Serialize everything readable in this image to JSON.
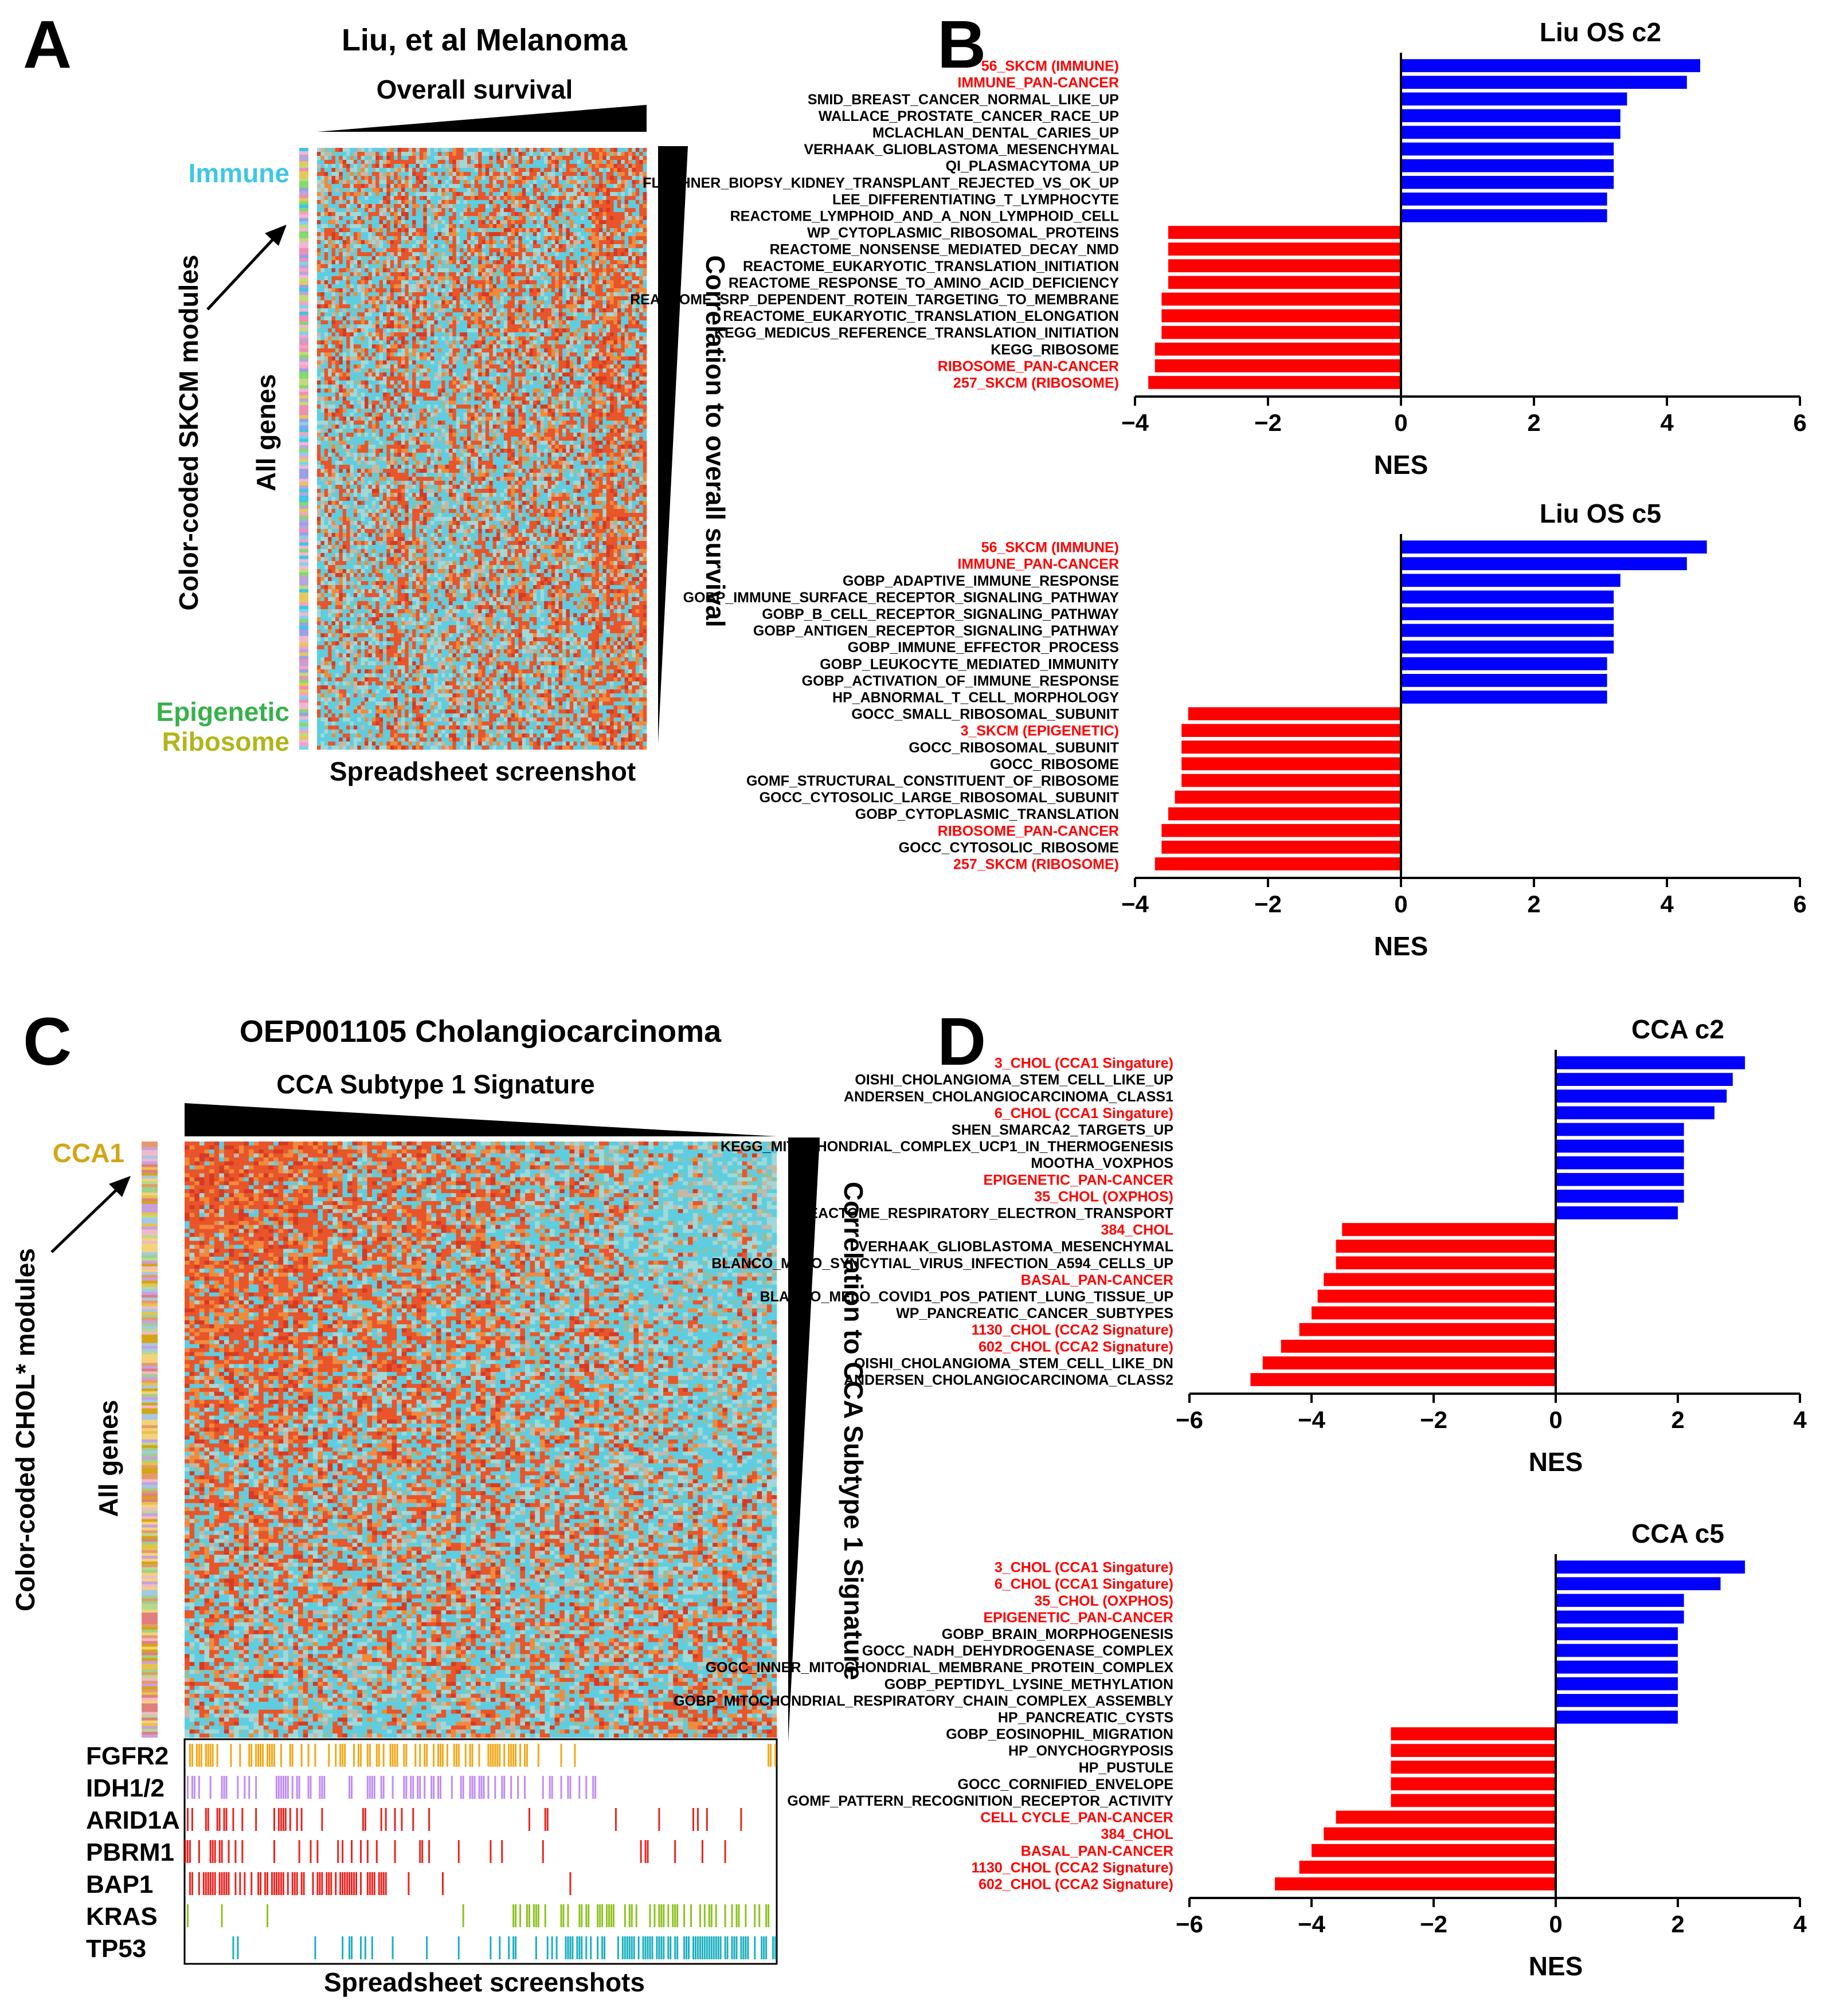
{
  "panels": {
    "A": {
      "letter": "A",
      "title": "Liu, et al Melanoma",
      "top_axis": "Overall survival",
      "side_axis": "Correlation to overall survival",
      "left_label": "Color-coded SKCM modules",
      "all_genes": "All genes",
      "caption": "Spreadsheet screenshot",
      "modules": [
        {
          "name": "Immune",
          "color": "#3ec7e6"
        },
        {
          "name": "Epigenetic",
          "color": "#37b14a"
        },
        {
          "name": "Ribosome",
          "color": "#b2b51c"
        }
      ]
    },
    "C": {
      "letter": "C",
      "title": "OEP001105 Cholangiocarcinoma",
      "top_axis": "CCA Subtype 1 Signature",
      "side_axis": "Correlation to CCA Subtype 1 Signature",
      "left_label": "Color-coded CHOL* modules",
      "all_genes": "All genes",
      "caption": "Spreadsheet screenshots",
      "modules": [
        {
          "name": "CCA1",
          "color": "#d4a516"
        }
      ],
      "mutations": [
        {
          "gene": "FGFR2",
          "color": "#f0a818"
        },
        {
          "gene": "IDH1/2",
          "color": "#bf8cf2"
        },
        {
          "gene": "ARID1A",
          "color": "#e52521"
        },
        {
          "gene": "PBRM1",
          "color": "#e52521"
        },
        {
          "gene": "BAP1",
          "color": "#e52521"
        },
        {
          "gene": "KRAS",
          "color": "#8dc21f"
        },
        {
          "gene": "TP53",
          "color": "#1ab0c0"
        }
      ]
    },
    "B": {
      "letter": "B"
    },
    "D": {
      "letter": "D"
    }
  },
  "chart_data": [
    {
      "type": "bar",
      "orientation": "horizontal",
      "title": "Liu OS c2",
      "xlabel": "NES",
      "xlim": [
        -4,
        6
      ],
      "xticks": [
        -4,
        -2,
        0,
        2,
        4,
        6
      ],
      "positive_color": "#0000ff",
      "negative_color": "#ff0000",
      "highlight_color": "#ff0000",
      "categories": [
        "56_SKCM (IMMUNE)",
        "IMMUNE_PAN-CANCER",
        "SMID_BREAST_CANCER_NORMAL_LIKE_UP",
        "WALLACE_PROSTATE_CANCER_RACE_UP",
        "MCLACHLAN_DENTAL_CARIES_UP",
        "VERHAAK_GLIOBLASTOMA_MESENCHYMAL",
        "QI_PLASMACYTOMA_UP",
        "FLECHNER_BIOPSY_KIDNEY_TRANSPLANT_REJECTED_VS_OK_UP",
        "LEE_DIFFERENTIATING_T_LYMPHOCYTE",
        "REACTOME_LYMPHOID_AND_A_NON_LYMPHOID_CELL",
        "WP_CYTOPLASMIC_RIBOSOMAL_PROTEINS",
        "REACTOME_NONSENSE_MEDIATED_DECAY_NMD",
        "REACTOME_EUKARYOTIC_TRANSLATION_INITIATION",
        "REACTOME_RESPONSE_TO_AMINO_ACID_DEFICIENCY",
        "REACTOME_SRP_DEPENDENT_ROTEIN_TARGETING_TO_MEMBRANE",
        "REACTOME_EUKARYOTIC_TRANSLATION_ELONGATION",
        "KEGG_MEDICUS_REFERENCE_TRANSLATION_INITIATION",
        "KEGG_RIBOSOME",
        "RIBOSOME_PAN-CANCER",
        "257_SKCM (RIBOSOME)"
      ],
      "values": [
        4.5,
        4.3,
        3.4,
        3.3,
        3.3,
        3.2,
        3.2,
        3.2,
        3.1,
        3.1,
        -3.5,
        -3.5,
        -3.5,
        -3.5,
        -3.6,
        -3.6,
        -3.6,
        -3.7,
        -3.7,
        -3.8
      ],
      "highlighted": [
        true,
        true,
        false,
        false,
        false,
        false,
        false,
        false,
        false,
        false,
        false,
        false,
        false,
        false,
        false,
        false,
        false,
        false,
        true,
        true
      ]
    },
    {
      "type": "bar",
      "orientation": "horizontal",
      "title": "Liu OS c5",
      "xlabel": "NES",
      "xlim": [
        -4,
        6
      ],
      "xticks": [
        -4,
        -2,
        0,
        2,
        4,
        6
      ],
      "positive_color": "#0000ff",
      "negative_color": "#ff0000",
      "highlight_color": "#ff0000",
      "categories": [
        "56_SKCM (IMMUNE)",
        "IMMUNE_PAN-CANCER",
        "GOBP_ADAPTIVE_IMMUNE_RESPONSE",
        "GOBP_IMMUNE_SURFACE_RECEPTOR_SIGNALING_PATHWAY",
        "GOBP_B_CELL_RECEPTOR_SIGNALING_PATHWAY",
        "GOBP_ANTIGEN_RECEPTOR_SIGNALING_PATHWAY",
        "GOBP_IMMUNE_EFFECTOR_PROCESS",
        "GOBP_LEUKOCYTE_MEDIATED_IMMUNITY",
        "GOBP_ACTIVATION_OF_IMMUNE_RESPONSE",
        "HP_ABNORMAL_T_CELL_MORPHOLOGY",
        "GOCC_SMALL_RIBOSOMAL_SUBUNIT",
        "3_SKCM (EPIGENETIC)",
        "GOCC_RIBOSOMAL_SUBUNIT",
        "GOCC_RIBOSOME",
        "GOMF_STRUCTURAL_CONSTITUENT_OF_RIBOSOME",
        "GOCC_CYTOSOLIC_LARGE_RIBOSOMAL_SUBUNIT",
        "GOBP_CYTOPLASMIC_TRANSLATION",
        "RIBOSOME_PAN-CANCER",
        "GOCC_CYTOSOLIC_RIBOSOME",
        "257_SKCM (RIBOSOME)"
      ],
      "values": [
        4.6,
        4.3,
        3.3,
        3.2,
        3.2,
        3.2,
        3.2,
        3.1,
        3.1,
        3.1,
        -3.2,
        -3.3,
        -3.3,
        -3.3,
        -3.3,
        -3.4,
        -3.5,
        -3.6,
        -3.6,
        -3.7
      ],
      "highlighted": [
        true,
        true,
        false,
        false,
        false,
        false,
        false,
        false,
        false,
        false,
        false,
        true,
        false,
        false,
        false,
        false,
        false,
        true,
        false,
        true
      ]
    },
    {
      "type": "bar",
      "orientation": "horizontal",
      "title": "CCA c2",
      "xlabel": "NES",
      "xlim": [
        -6,
        4
      ],
      "xticks": [
        -6,
        -4,
        -2,
        0,
        2,
        4
      ],
      "positive_color": "#0000ff",
      "negative_color": "#ff0000",
      "highlight_color": "#ff0000",
      "categories": [
        "3_CHOL (CCA1 Singature)",
        "OISHI_CHOLANGIOMA_STEM_CELL_LIKE_UP",
        "ANDERSEN_CHOLANGIOCARCINOMA_CLASS1",
        "6_CHOL (CCA1 Singature)",
        "SHEN_SMARCA2_TARGETS_UP",
        "KEGG_MITOCHONDRIAL_COMPLEX_UCP1_IN_THERMOGENESIS",
        "MOOTHA_VOXPHOS",
        "EPIGENETIC_PAN-CANCER",
        "35_CHOL (OXPHOS)",
        "REACTOME_RESPIRATORY_ELECTRON_TRANSPORT",
        "384_CHOL",
        "VERHAAK_GLIOBLASTOMA_MESENCHYMAL",
        "BLANCO_MELO_SYNCYTIAL_VIRUS_INFECTION_A594_CELLS_UP",
        "BASAL_PAN-CANCER",
        "BLANCO_MELO_COVID1_POS_PATIENT_LUNG_TISSUE_UP",
        "WP_PANCREATIC_CANCER_SUBTYPES",
        "1130_CHOL (CCA2 Signature)",
        "602_CHOL (CCA2 Signature)",
        "OISHI_CHOLANGIOMA_STEM_CELL_LIKE_DN",
        "ANDERSEN_CHOLANGIOCARCINOMA_CLASS2"
      ],
      "values": [
        3.1,
        2.9,
        2.8,
        2.6,
        2.1,
        2.1,
        2.1,
        2.1,
        2.1,
        2.0,
        -3.5,
        -3.6,
        -3.6,
        -3.8,
        -3.9,
        -4.0,
        -4.2,
        -4.5,
        -4.8,
        -5.0
      ],
      "highlighted": [
        true,
        false,
        false,
        true,
        false,
        false,
        false,
        true,
        true,
        false,
        true,
        false,
        false,
        true,
        false,
        false,
        true,
        true,
        false,
        false
      ]
    },
    {
      "type": "bar",
      "orientation": "horizontal",
      "title": "CCA c5",
      "xlabel": "NES",
      "xlim": [
        -6,
        4
      ],
      "xticks": [
        -6,
        -4,
        -2,
        0,
        2,
        4
      ],
      "positive_color": "#0000ff",
      "negative_color": "#ff0000",
      "highlight_color": "#ff0000",
      "categories": [
        "3_CHOL (CCA1 Singature)",
        "6_CHOL (CCA1 Singature)",
        "35_CHOL (OXPHOS)",
        "EPIGENETIC_PAN-CANCER",
        "GOBP_BRAIN_MORPHOGENESIS",
        "GOCC_NADH_DEHYDROGENASE_COMPLEX",
        "GOCC_INNER_MITOCHONDRIAL_MEMBRANE_PROTEIN_COMPLEX",
        "GOBP_PEPTIDYL_LYSINE_METHYLATION",
        "GOBP_MITOCHONDRIAL_RESPIRATORY_CHAIN_COMPLEX_ASSEMBLY",
        "HP_PANCREATIC_CYSTS",
        "GOBP_EOSINOPHIL_MIGRATION",
        "HP_ONYCHOGRYPOSIS",
        "HP_PUSTULE",
        "GOCC_CORNIFIED_ENVELOPE",
        "GOMF_PATTERN_RECOGNITION_RECEPTOR_ACTIVITY",
        "CELL CYCLE_PAN-CANCER",
        "384_CHOL",
        "BASAL_PAN-CANCER",
        "1130_CHOL (CCA2 Signature)",
        "602_CHOL (CCA2 Signature)"
      ],
      "values": [
        3.1,
        2.7,
        2.1,
        2.1,
        2.0,
        2.0,
        2.0,
        2.0,
        2.0,
        2.0,
        -2.7,
        -2.7,
        -2.7,
        -2.7,
        -2.7,
        -3.6,
        -3.8,
        -4.0,
        -4.2,
        -4.6
      ],
      "highlighted": [
        true,
        true,
        true,
        true,
        false,
        false,
        false,
        false,
        false,
        false,
        false,
        false,
        false,
        false,
        false,
        true,
        true,
        true,
        true,
        true
      ]
    }
  ]
}
